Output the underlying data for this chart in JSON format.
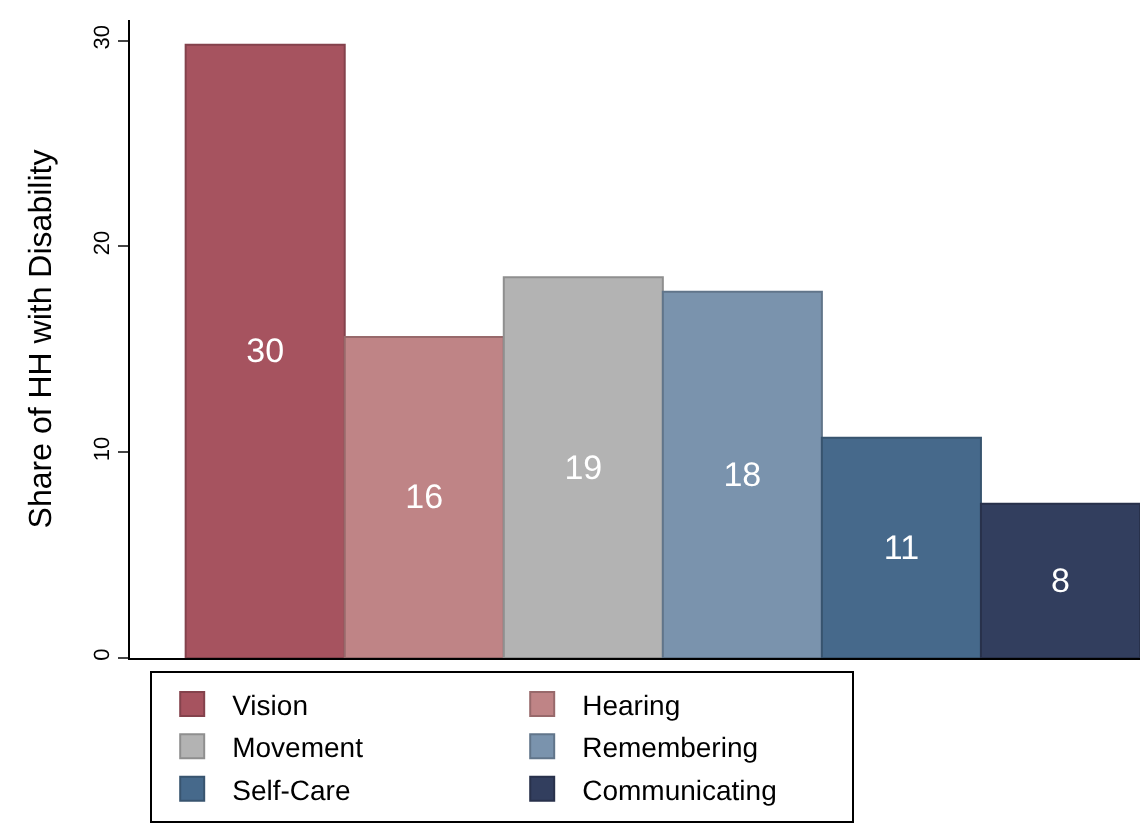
{
  "chart_data": {
    "type": "bar",
    "ylabel": "Share of HH with Disability",
    "categories": [
      null,
      null,
      null,
      null,
      null,
      null
    ],
    "series": [
      {
        "name": "Vision",
        "color": "#a6535f",
        "values": [
          29.8,
          null,
          null,
          null,
          null,
          null
        ],
        "value_labels": [
          "30",
          null,
          null,
          null,
          null,
          null
        ]
      },
      {
        "name": "Hearing",
        "color": "#bf8486",
        "values": [
          null,
          15.6,
          null,
          null,
          null,
          null
        ],
        "value_labels": [
          null,
          "16",
          null,
          null,
          null,
          null
        ]
      },
      {
        "name": "Movement",
        "color": "#b3b3b3",
        "values": [
          null,
          null,
          18.5,
          null,
          null,
          null
        ],
        "value_labels": [
          null,
          null,
          "19",
          null,
          null,
          null
        ]
      },
      {
        "name": "Remembering",
        "color": "#7a93ad",
        "values": [
          null,
          null,
          null,
          17.8,
          null,
          null
        ],
        "value_labels": [
          null,
          null,
          null,
          "18",
          null,
          null
        ]
      },
      {
        "name": "Self-Care",
        "color": "#46698b",
        "values": [
          null,
          null,
          null,
          null,
          10.7,
          null
        ],
        "value_labels": [
          null,
          null,
          null,
          null,
          "11",
          null
        ]
      },
      {
        "name": "Communicating",
        "color": "#323e5e",
        "values": [
          null,
          null,
          null,
          null,
          null,
          7.5
        ],
        "value_labels": [
          null,
          null,
          null,
          null,
          null,
          "8"
        ]
      }
    ],
    "ylim": [
      0,
      31
    ],
    "yticks": [
      0,
      10,
      20,
      30
    ],
    "legend": "bottom"
  }
}
